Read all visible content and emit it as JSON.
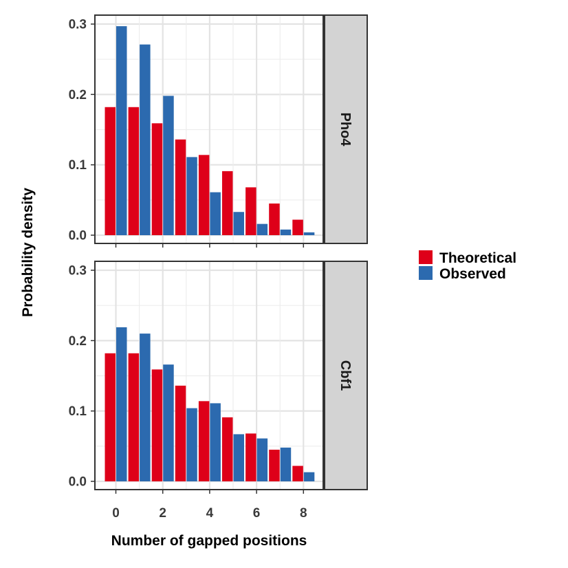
{
  "chart_data": {
    "type": "bar",
    "layout": "faceted, two panels stacked vertically, shared axes",
    "xlabel": "Number of gapped positions",
    "ylabel": "Probability density",
    "x_categories": [
      0,
      1,
      2,
      3,
      4,
      5,
      6,
      7,
      8
    ],
    "x_ticks": [
      0,
      2,
      4,
      6,
      8
    ],
    "x_tick_labels": [
      "0",
      "2",
      "4",
      "6",
      "8"
    ],
    "ylim": [
      0,
      0.3
    ],
    "y_ticks": [
      0.0,
      0.1,
      0.2,
      0.3
    ],
    "y_tick_labels": [
      "0.0",
      "0.1",
      "0.2",
      "0.3"
    ],
    "grid": true,
    "legend_position": "right",
    "colors": {
      "Theoretical": "#de0019",
      "Observed": "#2c6aaf"
    },
    "legend": [
      "Theoretical",
      "Observed"
    ],
    "panels": [
      {
        "strip": "Pho4",
        "series": [
          {
            "name": "Theoretical",
            "values": [
              0.182,
              0.182,
              0.159,
              0.136,
              0.114,
              0.091,
              0.068,
              0.045,
              0.022
            ]
          },
          {
            "name": "Observed",
            "values": [
              0.297,
              0.271,
              0.198,
              0.111,
              0.061,
              0.033,
              0.016,
              0.008,
              0.004
            ]
          }
        ]
      },
      {
        "strip": "Cbf1",
        "series": [
          {
            "name": "Theoretical",
            "values": [
              0.182,
              0.182,
              0.159,
              0.136,
              0.114,
              0.091,
              0.068,
              0.045,
              0.022
            ]
          },
          {
            "name": "Observed",
            "values": [
              0.219,
              0.21,
              0.166,
              0.104,
              0.111,
              0.067,
              0.061,
              0.048,
              0.013
            ]
          }
        ]
      }
    ]
  }
}
